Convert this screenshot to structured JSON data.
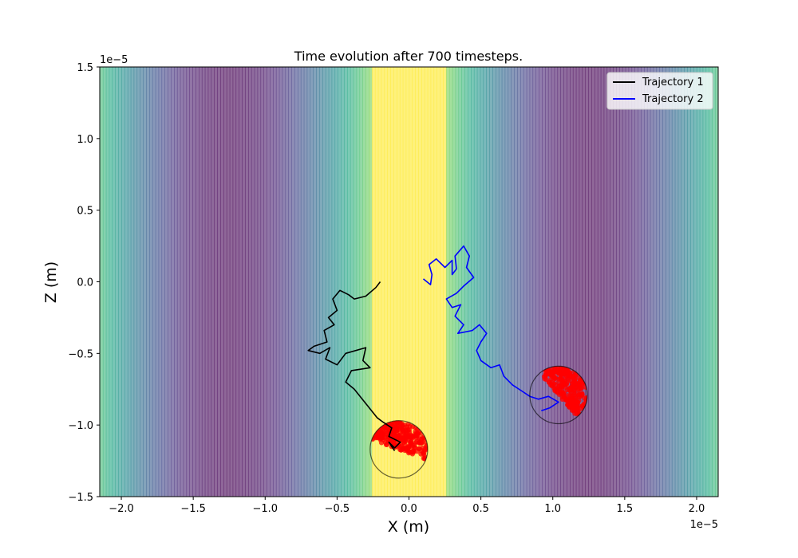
{
  "chart_data": {
    "type": "line",
    "title": "Time evolution after 700 timesteps.",
    "xlabel": "X (m)",
    "ylabel": "Z (m)",
    "x_offset_label": "1e−5",
    "y_offset_label": "1e−5",
    "scale": 1e-05,
    "xlim": [
      -2.15,
      2.15
    ],
    "ylim": [
      -1.5,
      1.5
    ],
    "x_ticks": [
      -2.0,
      -1.5,
      -1.0,
      -0.5,
      0.0,
      0.5,
      1.0,
      1.5,
      2.0
    ],
    "x_tick_labels": [
      "−2.0",
      "−1.5",
      "−1.0",
      "−0.5",
      "0.0",
      "0.5",
      "1.0",
      "1.5",
      "2.0"
    ],
    "y_ticks": [
      -1.5,
      -1.0,
      -0.5,
      0.0,
      0.5,
      1.0,
      1.5
    ],
    "y_tick_labels": [
      "−1.5",
      "−1.0",
      "−0.5",
      "0.0",
      "0.5",
      "1.0",
      "1.5"
    ],
    "grid": false,
    "legend_position": "top-right",
    "background_field": {
      "colormap": "viridis",
      "alpha": 0.6,
      "bright_band": [
        -0.25,
        0.25
      ],
      "period": 2.0
    },
    "series": [
      {
        "name": "Trajectory 1",
        "color": "#000000",
        "points": [
          [
            -0.2,
            0.0
          ],
          [
            -0.23,
            -0.04
          ],
          [
            -0.3,
            -0.1
          ],
          [
            -0.38,
            -0.12
          ],
          [
            -0.42,
            -0.09
          ],
          [
            -0.48,
            -0.06
          ],
          [
            -0.53,
            -0.12
          ],
          [
            -0.5,
            -0.2
          ],
          [
            -0.56,
            -0.25
          ],
          [
            -0.52,
            -0.3
          ],
          [
            -0.59,
            -0.34
          ],
          [
            -0.57,
            -0.42
          ],
          [
            -0.66,
            -0.45
          ],
          [
            -0.7,
            -0.48
          ],
          [
            -0.62,
            -0.5
          ],
          [
            -0.55,
            -0.46
          ],
          [
            -0.58,
            -0.54
          ],
          [
            -0.5,
            -0.58
          ],
          [
            -0.44,
            -0.5
          ],
          [
            -0.3,
            -0.46
          ],
          [
            -0.32,
            -0.55
          ],
          [
            -0.27,
            -0.6
          ],
          [
            -0.4,
            -0.62
          ],
          [
            -0.44,
            -0.7
          ],
          [
            -0.38,
            -0.75
          ],
          [
            -0.34,
            -0.8
          ],
          [
            -0.3,
            -0.85
          ],
          [
            -0.26,
            -0.9
          ],
          [
            -0.22,
            -0.95
          ],
          [
            -0.18,
            -0.98
          ],
          [
            -0.12,
            -1.02
          ],
          [
            -0.14,
            -1.08
          ],
          [
            -0.06,
            -1.12
          ],
          [
            -0.1,
            -1.16
          ],
          [
            -0.14,
            -1.12
          ],
          [
            -0.1,
            -1.18
          ]
        ]
      },
      {
        "name": "Trajectory 2",
        "color": "#0000ff",
        "points": [
          [
            0.1,
            0.02
          ],
          [
            0.15,
            -0.02
          ],
          [
            0.16,
            0.05
          ],
          [
            0.14,
            0.12
          ],
          [
            0.19,
            0.16
          ],
          [
            0.25,
            0.1
          ],
          [
            0.3,
            0.15
          ],
          [
            0.3,
            0.05
          ],
          [
            0.33,
            0.09
          ],
          [
            0.32,
            0.18
          ],
          [
            0.38,
            0.25
          ],
          [
            0.42,
            0.18
          ],
          [
            0.4,
            0.1
          ],
          [
            0.45,
            0.03
          ],
          [
            0.38,
            -0.03
          ],
          [
            0.33,
            -0.08
          ],
          [
            0.26,
            -0.12
          ],
          [
            0.3,
            -0.18
          ],
          [
            0.36,
            -0.16
          ],
          [
            0.32,
            -0.24
          ],
          [
            0.38,
            -0.3
          ],
          [
            0.34,
            -0.36
          ],
          [
            0.44,
            -0.34
          ],
          [
            0.49,
            -0.3
          ],
          [
            0.54,
            -0.36
          ],
          [
            0.5,
            -0.42
          ],
          [
            0.47,
            -0.48
          ],
          [
            0.5,
            -0.55
          ],
          [
            0.57,
            -0.6
          ],
          [
            0.63,
            -0.58
          ],
          [
            0.66,
            -0.66
          ],
          [
            0.72,
            -0.72
          ],
          [
            0.78,
            -0.76
          ],
          [
            0.84,
            -0.8
          ],
          [
            0.9,
            -0.82
          ],
          [
            0.97,
            -0.8
          ],
          [
            1.04,
            -0.84
          ],
          [
            0.98,
            -0.88
          ],
          [
            0.92,
            -0.9
          ]
        ]
      }
    ],
    "circles": [
      {
        "cx": -0.07,
        "cy": -1.17,
        "r": 0.2
      },
      {
        "cx": 1.04,
        "cy": -0.79,
        "r": 0.2
      }
    ],
    "particle_color": "#ff0000"
  }
}
